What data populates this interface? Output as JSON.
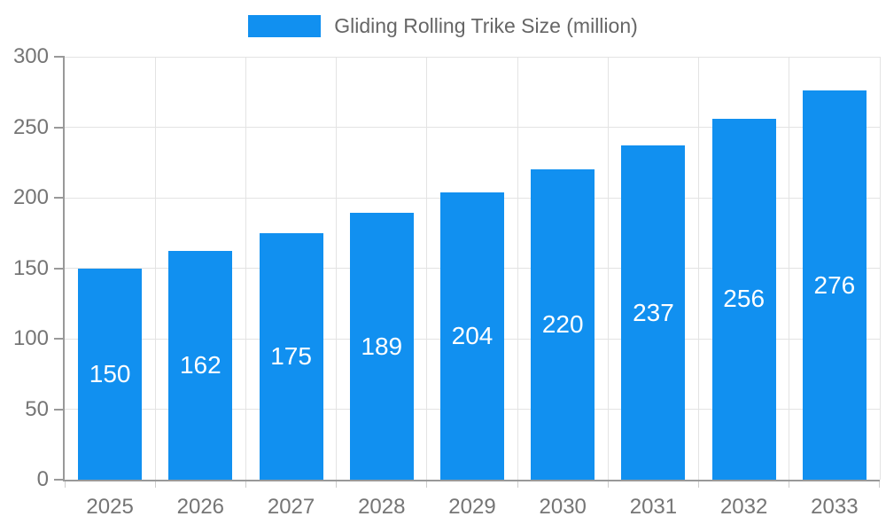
{
  "chart_data": {
    "type": "bar",
    "title": "Gliding Rolling Trike Size (million)",
    "categories": [
      "2025",
      "2026",
      "2027",
      "2028",
      "2029",
      "2030",
      "2031",
      "2032",
      "2033"
    ],
    "series": [
      {
        "name": "Gliding Rolling Trike Size (million)",
        "values": [
          150,
          162,
          175,
          189,
          204,
          220,
          237,
          256,
          276
        ]
      }
    ],
    "xlabel": "",
    "ylabel": "",
    "ylim": [
      0,
      300
    ],
    "yticks": [
      0,
      50,
      100,
      150,
      200,
      250,
      300
    ],
    "grid": true,
    "legend_position": "top",
    "value_labels": "centered-inside-bars",
    "colors": {
      "bar": "#1190F0",
      "value_label": "#FFFFFF",
      "axis_text": "#757575",
      "legend_text": "#666666",
      "grid_line": "#E3E3E3",
      "axis_line": "#999999",
      "x_tick": "#CCCCCC",
      "background": "#FFFFFF"
    }
  }
}
